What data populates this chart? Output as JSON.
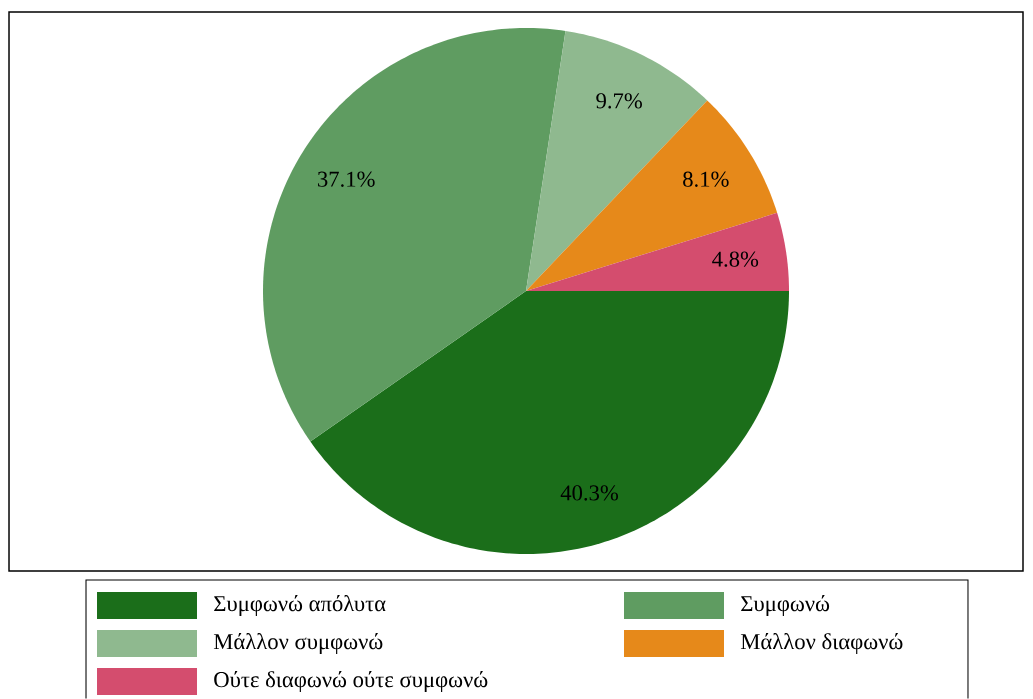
{
  "chart_data": {
    "type": "pie",
    "categories": [
      "Συμφωνώ απόλυτα",
      "Συμφωνώ",
      "Μάλλον συμφωνώ",
      "Μάλλον διαφωνώ",
      "Ούτε διαφωνώ ούτε συμφωνώ"
    ],
    "values": [
      40.3,
      37.1,
      9.7,
      8.1,
      4.8
    ],
    "colors": [
      "#1b6e1a",
      "#5f9c61",
      "#8fb98f",
      "#e6891a",
      "#d44d6e"
    ],
    "value_labels": [
      "40.3%",
      "37.1%",
      "9.7%",
      "8.1%",
      "4.8%"
    ],
    "legend": "bottom"
  }
}
